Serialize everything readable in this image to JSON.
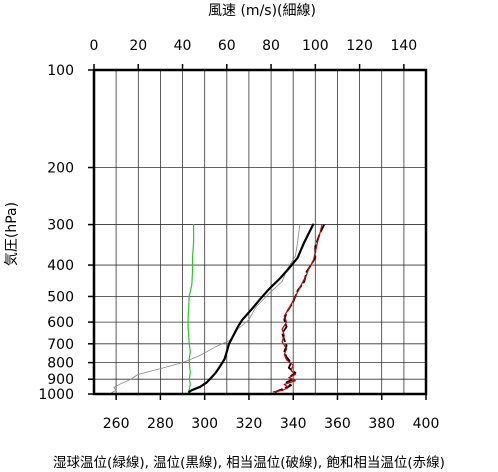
{
  "chart_data": {
    "type": "line",
    "top_axis_label": "風速 (m/s)(細線)",
    "ylabel": "気圧(hPa)",
    "xlabel": "湿球温位(緑線), 温位(黒線), 相当温位(破線), 飽和相当温位(赤線)",
    "x_temperature": {
      "lim": [
        250,
        400
      ],
      "ticks": [
        260,
        280,
        300,
        320,
        340,
        360,
        380,
        400
      ],
      "unit": "K"
    },
    "x_wind": {
      "lim": [
        0,
        150
      ],
      "ticks": [
        0,
        20,
        40,
        60,
        80,
        100,
        120,
        140
      ],
      "unit": "m/s"
    },
    "y_pressure": {
      "lim": [
        1000,
        100
      ],
      "scale": "log",
      "ticks": [
        100,
        200,
        300,
        400,
        500,
        600,
        700,
        800,
        900,
        1000
      ]
    },
    "grid": true,
    "series": [
      {
        "id": "wind_speed",
        "axis": "wind",
        "color": "#888888",
        "style": "thin",
        "points": [
          [
            8,
            990
          ],
          [
            10,
            975
          ],
          [
            9,
            955
          ],
          [
            12,
            930
          ],
          [
            16,
            905
          ],
          [
            20,
            870
          ],
          [
            30,
            835
          ],
          [
            40,
            800
          ],
          [
            48,
            760
          ],
          [
            55,
            715
          ],
          [
            62,
            680
          ],
          [
            65,
            630
          ],
          [
            70,
            590
          ],
          [
            73,
            540
          ],
          [
            79,
            490
          ],
          [
            85,
            450
          ],
          [
            87,
            415
          ],
          [
            91,
            375
          ],
          [
            92,
            340
          ],
          [
            93,
            300
          ]
        ]
      },
      {
        "id": "wet_bulb_potential_temperature",
        "axis": "temperature",
        "color": "#22cc22",
        "style": "solid",
        "points": [
          [
            292.6,
            985
          ],
          [
            293.2,
            960
          ],
          [
            293.5,
            930
          ],
          [
            293.0,
            900
          ],
          [
            293.5,
            860
          ],
          [
            293.2,
            820
          ],
          [
            293.0,
            780
          ],
          [
            293.5,
            740
          ],
          [
            293.0,
            700
          ],
          [
            292.8,
            660
          ],
          [
            292.5,
            620
          ],
          [
            292.5,
            580
          ],
          [
            292.8,
            540
          ],
          [
            293.0,
            500
          ],
          [
            294.2,
            460
          ],
          [
            294.5,
            420
          ],
          [
            294.5,
            380
          ],
          [
            295.0,
            340
          ],
          [
            295.0,
            300
          ]
        ]
      },
      {
        "id": "potential_temperature",
        "axis": "temperature",
        "color": "#000000",
        "style": "solid",
        "points": [
          [
            293,
            985
          ],
          [
            294,
            975
          ],
          [
            298,
            950
          ],
          [
            301,
            920
          ],
          [
            303,
            890
          ],
          [
            305,
            860
          ],
          [
            307,
            820
          ],
          [
            309,
            780
          ],
          [
            310,
            740
          ],
          [
            311,
            700
          ],
          [
            313,
            660
          ],
          [
            315,
            620
          ],
          [
            317,
            590
          ],
          [
            321,
            550
          ],
          [
            325,
            510
          ],
          [
            329,
            475
          ],
          [
            334,
            440
          ],
          [
            338,
            410
          ],
          [
            342,
            380
          ],
          [
            345,
            340
          ],
          [
            349,
            300
          ]
        ]
      },
      {
        "id": "equivalent_potential_temperature",
        "axis": "temperature",
        "color": "#000000",
        "style": "dashed",
        "points": [
          [
            332,
            985
          ],
          [
            336,
            960
          ],
          [
            339,
            940
          ],
          [
            337,
            920
          ],
          [
            340,
            900
          ],
          [
            339,
            880
          ],
          [
            341,
            860
          ],
          [
            338,
            830
          ],
          [
            339,
            800
          ],
          [
            337,
            770
          ],
          [
            336,
            740
          ],
          [
            337,
            710
          ],
          [
            336,
            680
          ],
          [
            335,
            650
          ],
          [
            337,
            620
          ],
          [
            336,
            590
          ],
          [
            337,
            560
          ],
          [
            340,
            520
          ],
          [
            342,
            480
          ],
          [
            345,
            450
          ],
          [
            346,
            420
          ],
          [
            348,
            400
          ],
          [
            350,
            380
          ],
          [
            350,
            350
          ],
          [
            352,
            320
          ],
          [
            354,
            300
          ]
        ]
      },
      {
        "id": "saturated_equivalent_potential_temperature",
        "axis": "temperature",
        "color": "#cc0000",
        "style": "solid",
        "points": [
          [
            331,
            985
          ],
          [
            335,
            975
          ],
          [
            338,
            955
          ],
          [
            336,
            935
          ],
          [
            341,
            910
          ],
          [
            338,
            890
          ],
          [
            341,
            870
          ],
          [
            339,
            845
          ],
          [
            340,
            815
          ],
          [
            337,
            785
          ],
          [
            336,
            755
          ],
          [
            337,
            725
          ],
          [
            335,
            690
          ],
          [
            336,
            660
          ],
          [
            335,
            630
          ],
          [
            337,
            600
          ],
          [
            336,
            575
          ],
          [
            338,
            545
          ],
          [
            340,
            515
          ],
          [
            342,
            485
          ],
          [
            344,
            455
          ],
          [
            346,
            430
          ],
          [
            347,
            410
          ],
          [
            349,
            390
          ],
          [
            350,
            365
          ],
          [
            351,
            340
          ],
          [
            352,
            320
          ],
          [
            353,
            300
          ]
        ]
      }
    ]
  }
}
